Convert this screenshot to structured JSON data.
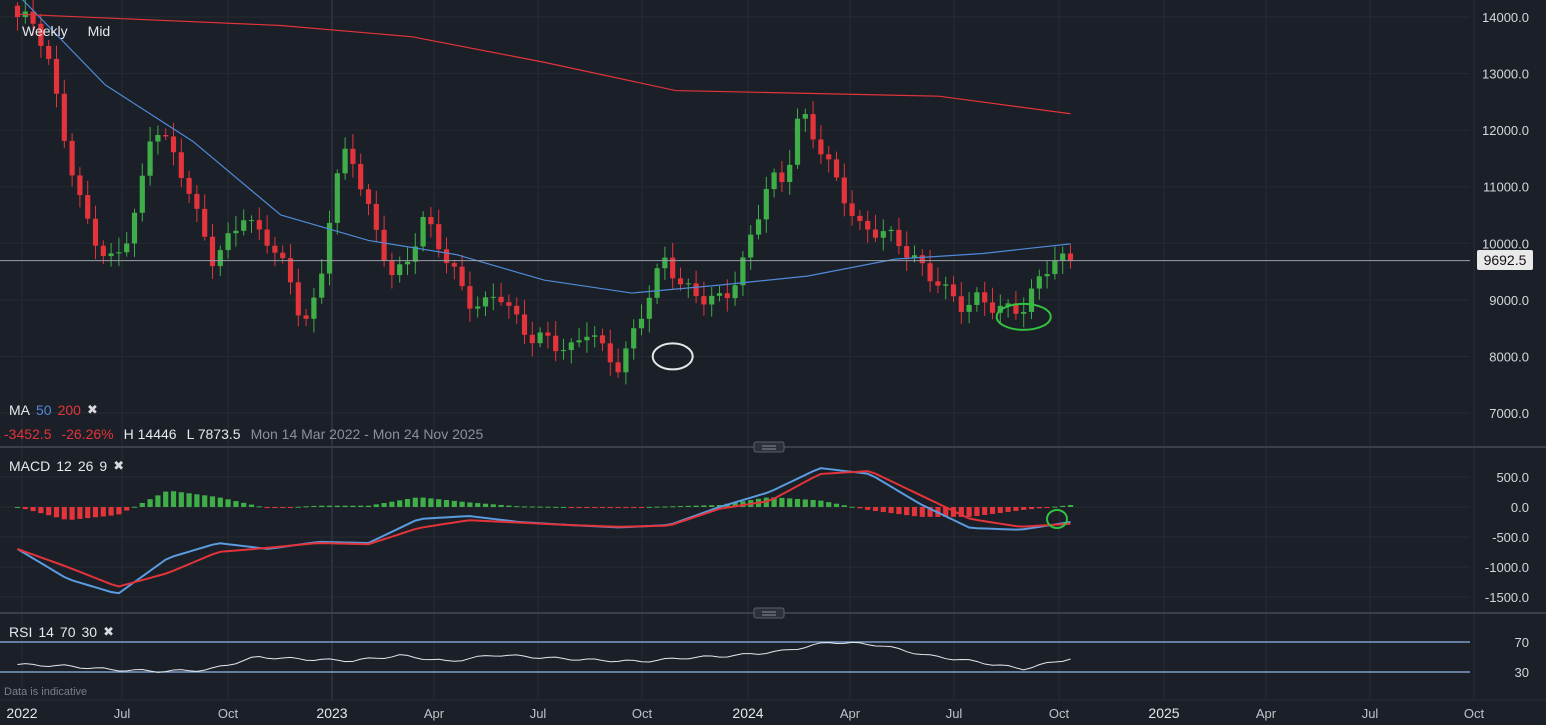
{
  "toolbar": {
    "interval": "Weekly",
    "price_type": "Mid"
  },
  "ma_legend": {
    "label": "MA",
    "p1": "50",
    "p2": "200",
    "color1": "#4f8ad8",
    "color2": "#e2343a"
  },
  "stats": {
    "change": "-3452.5",
    "change_pct": "-26.26%",
    "high": "H 14446",
    "low": "L 7873.5",
    "range": "Mon 14 Mar 2022 - Mon 24 Nov 2025"
  },
  "macd_legend": {
    "label": "MACD",
    "fast": "12",
    "slow": "26",
    "signal": "9"
  },
  "rsi_legend": {
    "label": "RSI",
    "period": "14",
    "upper": "70",
    "lower": "30"
  },
  "current_price": "9692.5",
  "note": "Data is indicative",
  "colors": {
    "up": "#3fae49",
    "down": "#e2343a",
    "background": "#1b1f27"
  },
  "chart_data": [
    {
      "type": "candlestick",
      "title": "",
      "ylim": [
        6500,
        14250
      ],
      "y_ticks": [
        "14000.0",
        "13000.0",
        "12000.0",
        "11000.0",
        "10000.0",
        "9000.0",
        "8000.0",
        "7000.0"
      ],
      "x_ticks": [
        "2022",
        "Jul",
        "Oct",
        "2023",
        "Apr",
        "Jul",
        "Oct",
        "2024",
        "Apr",
        "Jul",
        "Oct",
        "2025",
        "Apr",
        "Jul",
        "Oct"
      ],
      "close_path": [
        14000,
        13800,
        13200,
        12100,
        11000,
        10200,
        9500,
        9800,
        10700,
        12300,
        11800,
        11100,
        10300,
        9700,
        10200,
        10600,
        10100,
        9800,
        9400,
        8700,
        9200,
        10900,
        11600,
        10800,
        10200,
        9500,
        9700,
        10300,
        9900,
        9600,
        9100,
        8900,
        9000,
        8600,
        8400,
        8500,
        8200,
        8000,
        8400,
        8100,
        7950,
        8500,
        9000,
        9600,
        9300,
        9250,
        9100,
        8950,
        9300,
        10300,
        11300,
        11200,
        12300,
        11700,
        11300,
        10900,
        10400,
        10200,
        10000,
        9800,
        9700,
        9500,
        9100,
        8700,
        8950,
        8900,
        9000,
        8900,
        9300,
        9600,
        9692.5
      ],
      "ma50_path": [
        14400,
        12800,
        11800,
        10500,
        10050,
        9800,
        9350,
        9120,
        9260,
        9420,
        9720,
        9820,
        9990
      ],
      "ma200_path": [
        14050,
        13950,
        13850,
        13650,
        13200,
        12700,
        12650,
        12600,
        12290
      ],
      "highlights": [
        {
          "label": "",
          "x_weeks": 84,
          "y": 8000
        },
        {
          "label": "",
          "x_weeks": 129,
          "y": 8700
        }
      ]
    },
    {
      "type": "line",
      "title": "",
      "ylim": [
        -1650,
        780
      ],
      "y_ticks": [
        "500.0",
        "0.0",
        "-500.0",
        "-1000.0",
        "-1500.0"
      ],
      "series": [
        {
          "name": "",
          "values": [
            -700,
            -1200,
            -1450,
            -850,
            -600,
            -700,
            -580,
            -600,
            -200,
            -150,
            -250,
            -300,
            -340,
            -300,
            0,
            250,
            650,
            550,
            50,
            -350,
            -380,
            -250
          ]
        },
        {
          "name": "",
          "values": [
            -700,
            -1000,
            -1330,
            -1100,
            -750,
            -680,
            -600,
            -620,
            -350,
            -220,
            -260,
            -300,
            -330,
            -310,
            -30,
            100,
            550,
            600,
            200,
            -200,
            -330,
            -280
          ]
        }
      ]
    },
    {
      "type": "line",
      "title": "",
      "ylim": [
        0,
        100
      ],
      "y_ticks": [
        "70",
        "30"
      ],
      "series": [
        {
          "name": "",
          "values": [
            40,
            38,
            33,
            31,
            33,
            50,
            47,
            45,
            52,
            44,
            53,
            49,
            46,
            44,
            49,
            52,
            58,
            70,
            66,
            52,
            44,
            34,
            48
          ]
        }
      ]
    }
  ]
}
